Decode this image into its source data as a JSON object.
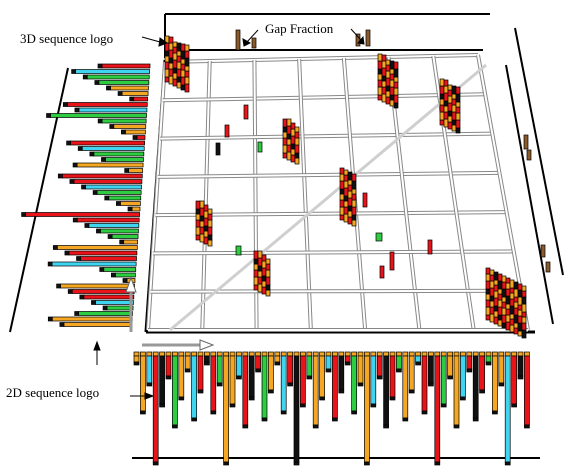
{
  "labels": {
    "logo_3d": "3D sequence logo",
    "gap_fraction": "Gap Fraction",
    "logo_2d": "2D sequence logo"
  },
  "colors": {
    "red": "#e8141a",
    "orange": "#f5a623",
    "green": "#2ecc40",
    "cyan": "#3fd4f0",
    "black": "#111111",
    "gap_brown": "#8b5a2b",
    "grid": "#dcdcdc"
  },
  "grid_cells": 7
}
